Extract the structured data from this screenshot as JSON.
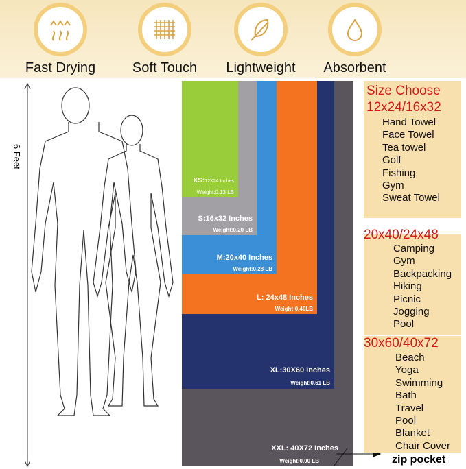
{
  "features": [
    {
      "icon": "heat-waves-icon",
      "label": "Fast Drying"
    },
    {
      "icon": "grid-fabric-icon",
      "label": "Soft Touch"
    },
    {
      "icon": "feather-icon",
      "label": "Lightweight"
    },
    {
      "icon": "water-drop-icon",
      "label": "Absorbent"
    }
  ],
  "height_label": "6 Feet",
  "sizes": [
    {
      "name": "XXL: 40X72 Inches",
      "weight": "Weight:0.90 LB",
      "color": "#5a555c"
    },
    {
      "name": "XL:30X60 Inches",
      "weight": "Weight:0.61 LB",
      "color": "#24326e"
    },
    {
      "name": "L: 24x48 Inches",
      "weight": "Weight:0.40LB",
      "color": "#f47321"
    },
    {
      "name": "M:20x40 Inches",
      "weight": "Weight:0.28 LB",
      "color": "#3b8fd6"
    },
    {
      "name": "S:16x32 Inches",
      "weight": "Weight:0.20 LB",
      "color": "#a29fa5"
    },
    {
      "name_prefix": "XS:",
      "name": "12X24 Inches",
      "weight": "Weight:0.13 LB",
      "color": "#9acd3a"
    }
  ],
  "zip_label": "zip pocket",
  "panels": {
    "title": "Size Choose",
    "groups": [
      {
        "heading": "12x24/16x32",
        "items": [
          "Hand Towel",
          "Face Towel",
          "Tea towel",
          "Golf",
          "Fishing",
          "Gym",
          "Sweat Towel"
        ]
      },
      {
        "heading": "20x40/24x48",
        "items": [
          "Camping",
          "Gym",
          "Backpacking",
          "Hiking",
          "Picnic",
          "Jogging",
          "Pool"
        ]
      },
      {
        "heading": "30x60/40x72",
        "items": [
          "Beach",
          "Yoga",
          "Swimming",
          "Bath",
          "Travel",
          "Pool",
          "Blanket",
          "Chair Cover"
        ]
      }
    ]
  }
}
